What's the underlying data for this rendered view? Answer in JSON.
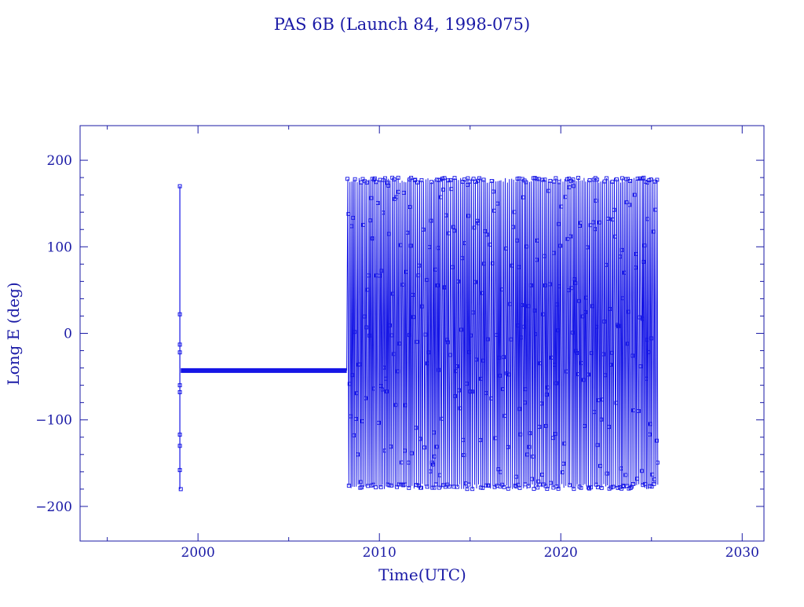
{
  "chart_data": {
    "type": "line",
    "title": "PAS 6B (Launch 84, 1998-075)",
    "xlabel": "Time(UTC)",
    "ylabel": "Long E (deg)",
    "xlim": [
      1993.5,
      2031.2
    ],
    "ylim": [
      -240,
      240
    ],
    "x_ticks": [
      2000,
      2010,
      2020,
      2030
    ],
    "x_tick_labels": [
      "2000",
      "2010",
      "2020",
      "2030"
    ],
    "y_ticks": [
      200,
      100,
      0,
      -100,
      -200
    ],
    "y_tick_labels": [
      "200",
      "100",
      "0",
      "−100",
      "−200"
    ],
    "grid": false,
    "colors": {
      "axis": "#1a1aa6",
      "series": "#1515e6"
    },
    "series": [
      {
        "segments": [
          {
            "kind": "launch-transfer",
            "x": [
              1999.0,
              1999.0,
              1999.0,
              1999.0,
              1999.0,
              1999.0,
              1999.0,
              1999.0,
              1999.0,
              1999.05
            ],
            "y": [
              170,
              22,
              -13,
              -22,
              -60,
              -68,
              -117,
              -130,
              -158,
              -180
            ]
          },
          {
            "kind": "station-keeping",
            "x_start": 1999.05,
            "x_end": 2008.2,
            "y": -43
          },
          {
            "kind": "drift",
            "x_start": 2008.2,
            "x_end": 2025.35,
            "y_min": -180,
            "y_max": 180
          }
        ]
      }
    ]
  }
}
